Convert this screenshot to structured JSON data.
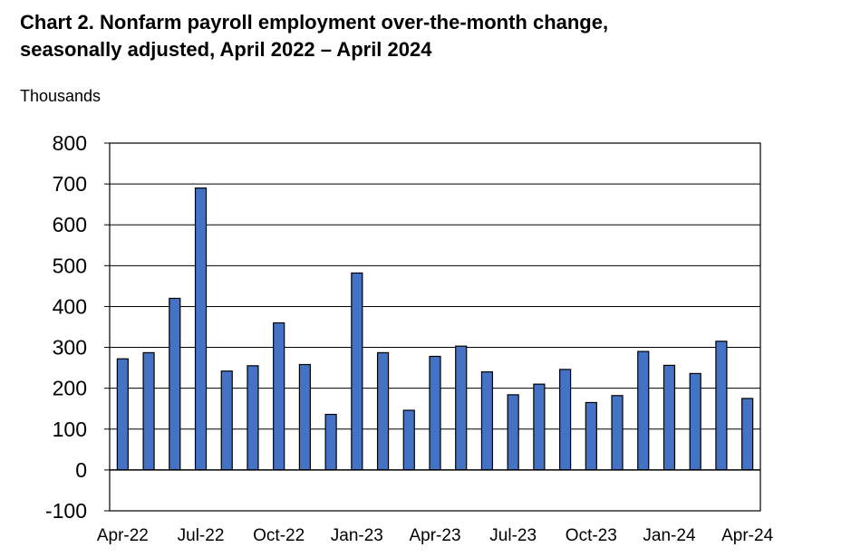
{
  "title_line1": "Chart 2. Nonfarm payroll employment over-the-month change,",
  "title_line2": "seasonally adjusted, April 2022 – April 2024",
  "chart_data": {
    "type": "bar",
    "title": "Chart 2. Nonfarm payroll employment over-the-month change, seasonally adjusted, April 2022 – April 2024",
    "ylabel": "Thousands",
    "xlabel": "",
    "ylim": [
      -100,
      800
    ],
    "yticks": [
      -100,
      0,
      100,
      200,
      300,
      400,
      500,
      600,
      700,
      800
    ],
    "grid": true,
    "bar_color": "#4472C4",
    "categories": [
      "Apr-22",
      "May-22",
      "Jun-22",
      "Jul-22",
      "Aug-22",
      "Sep-22",
      "Oct-22",
      "Nov-22",
      "Dec-22",
      "Jan-23",
      "Feb-23",
      "Mar-23",
      "Apr-23",
      "May-23",
      "Jun-23",
      "Jul-23",
      "Aug-23",
      "Sep-23",
      "Oct-23",
      "Nov-23",
      "Dec-23",
      "Jan-24",
      "Feb-24",
      "Mar-24",
      "Apr-24"
    ],
    "x_tick_labels": [
      "Apr-22",
      "Jul-22",
      "Oct-22",
      "Jan-23",
      "Apr-23",
      "Jul-23",
      "Oct-23",
      "Jan-24",
      "Apr-24"
    ],
    "values": [
      272,
      287,
      420,
      690,
      242,
      255,
      360,
      258,
      136,
      482,
      287,
      146,
      278,
      303,
      240,
      184,
      210,
      246,
      165,
      182,
      290,
      256,
      236,
      315,
      175
    ]
  }
}
